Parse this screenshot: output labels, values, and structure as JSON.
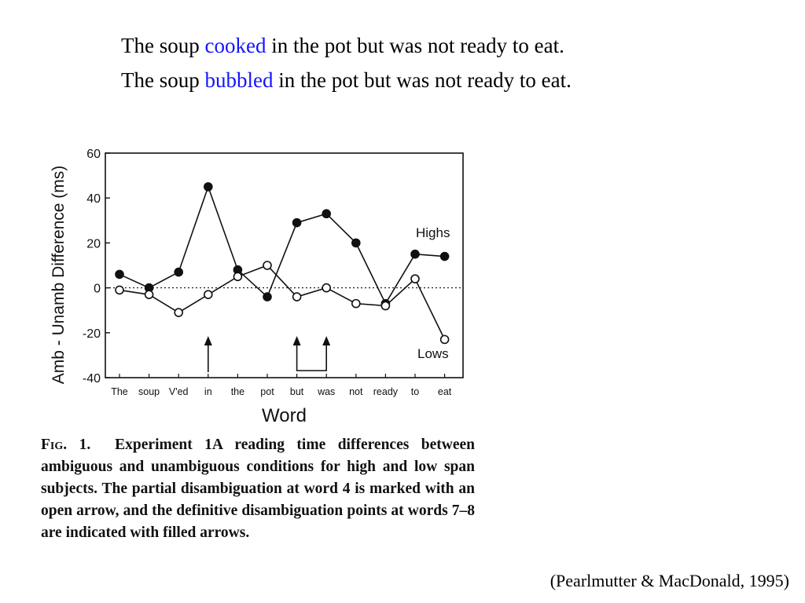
{
  "sentences": [
    {
      "before": "The soup ",
      "verb": "cooked",
      "after": " in the pot but was not ready to eat."
    },
    {
      "before": "The soup ",
      "verb": "bubbled",
      "after": " in the pot but was not ready to eat."
    }
  ],
  "colors": {
    "verb": "#1414ff",
    "series": "#111111"
  },
  "chart_data": {
    "type": "line",
    "xlabel": "Word",
    "ylabel": "Amb - Unamb Difference (ms)",
    "categories": [
      "The",
      "soup",
      "V'ed",
      "in",
      "the",
      "pot",
      "but",
      "was",
      "not",
      "ready",
      "to",
      "eat"
    ],
    "ylim": [
      -40,
      60
    ],
    "yticks": [
      "60",
      "40",
      "20",
      "0",
      "-20",
      "-40"
    ],
    "series": [
      {
        "name": "Highs",
        "marker": "filled",
        "values": [
          6,
          0,
          7,
          45,
          8,
          -4,
          29,
          33,
          20,
          -7,
          15,
          14
        ]
      },
      {
        "name": "Lows",
        "marker": "open",
        "values": [
          -1,
          -3,
          -11,
          -3,
          5,
          10,
          -4,
          0,
          -7,
          -8,
          4,
          -23
        ]
      }
    ],
    "zero_line": "dotted",
    "arrows": [
      {
        "type": "single",
        "word_index": 3
      },
      {
        "type": "bracket",
        "word_indices": [
          6,
          7
        ]
      }
    ],
    "grid": false
  },
  "caption": {
    "label": "Fig. 1.",
    "text": "Experiment 1A reading time differences between ambiguous and unambiguous conditions for high and low span subjects. The partial disambiguation at word 4 is marked with an open arrow, and the definitive disambiguation points at words 7–8 are indicated with filled arrows."
  },
  "citation": "(Pearlmutter & MacDonald, 1995)"
}
